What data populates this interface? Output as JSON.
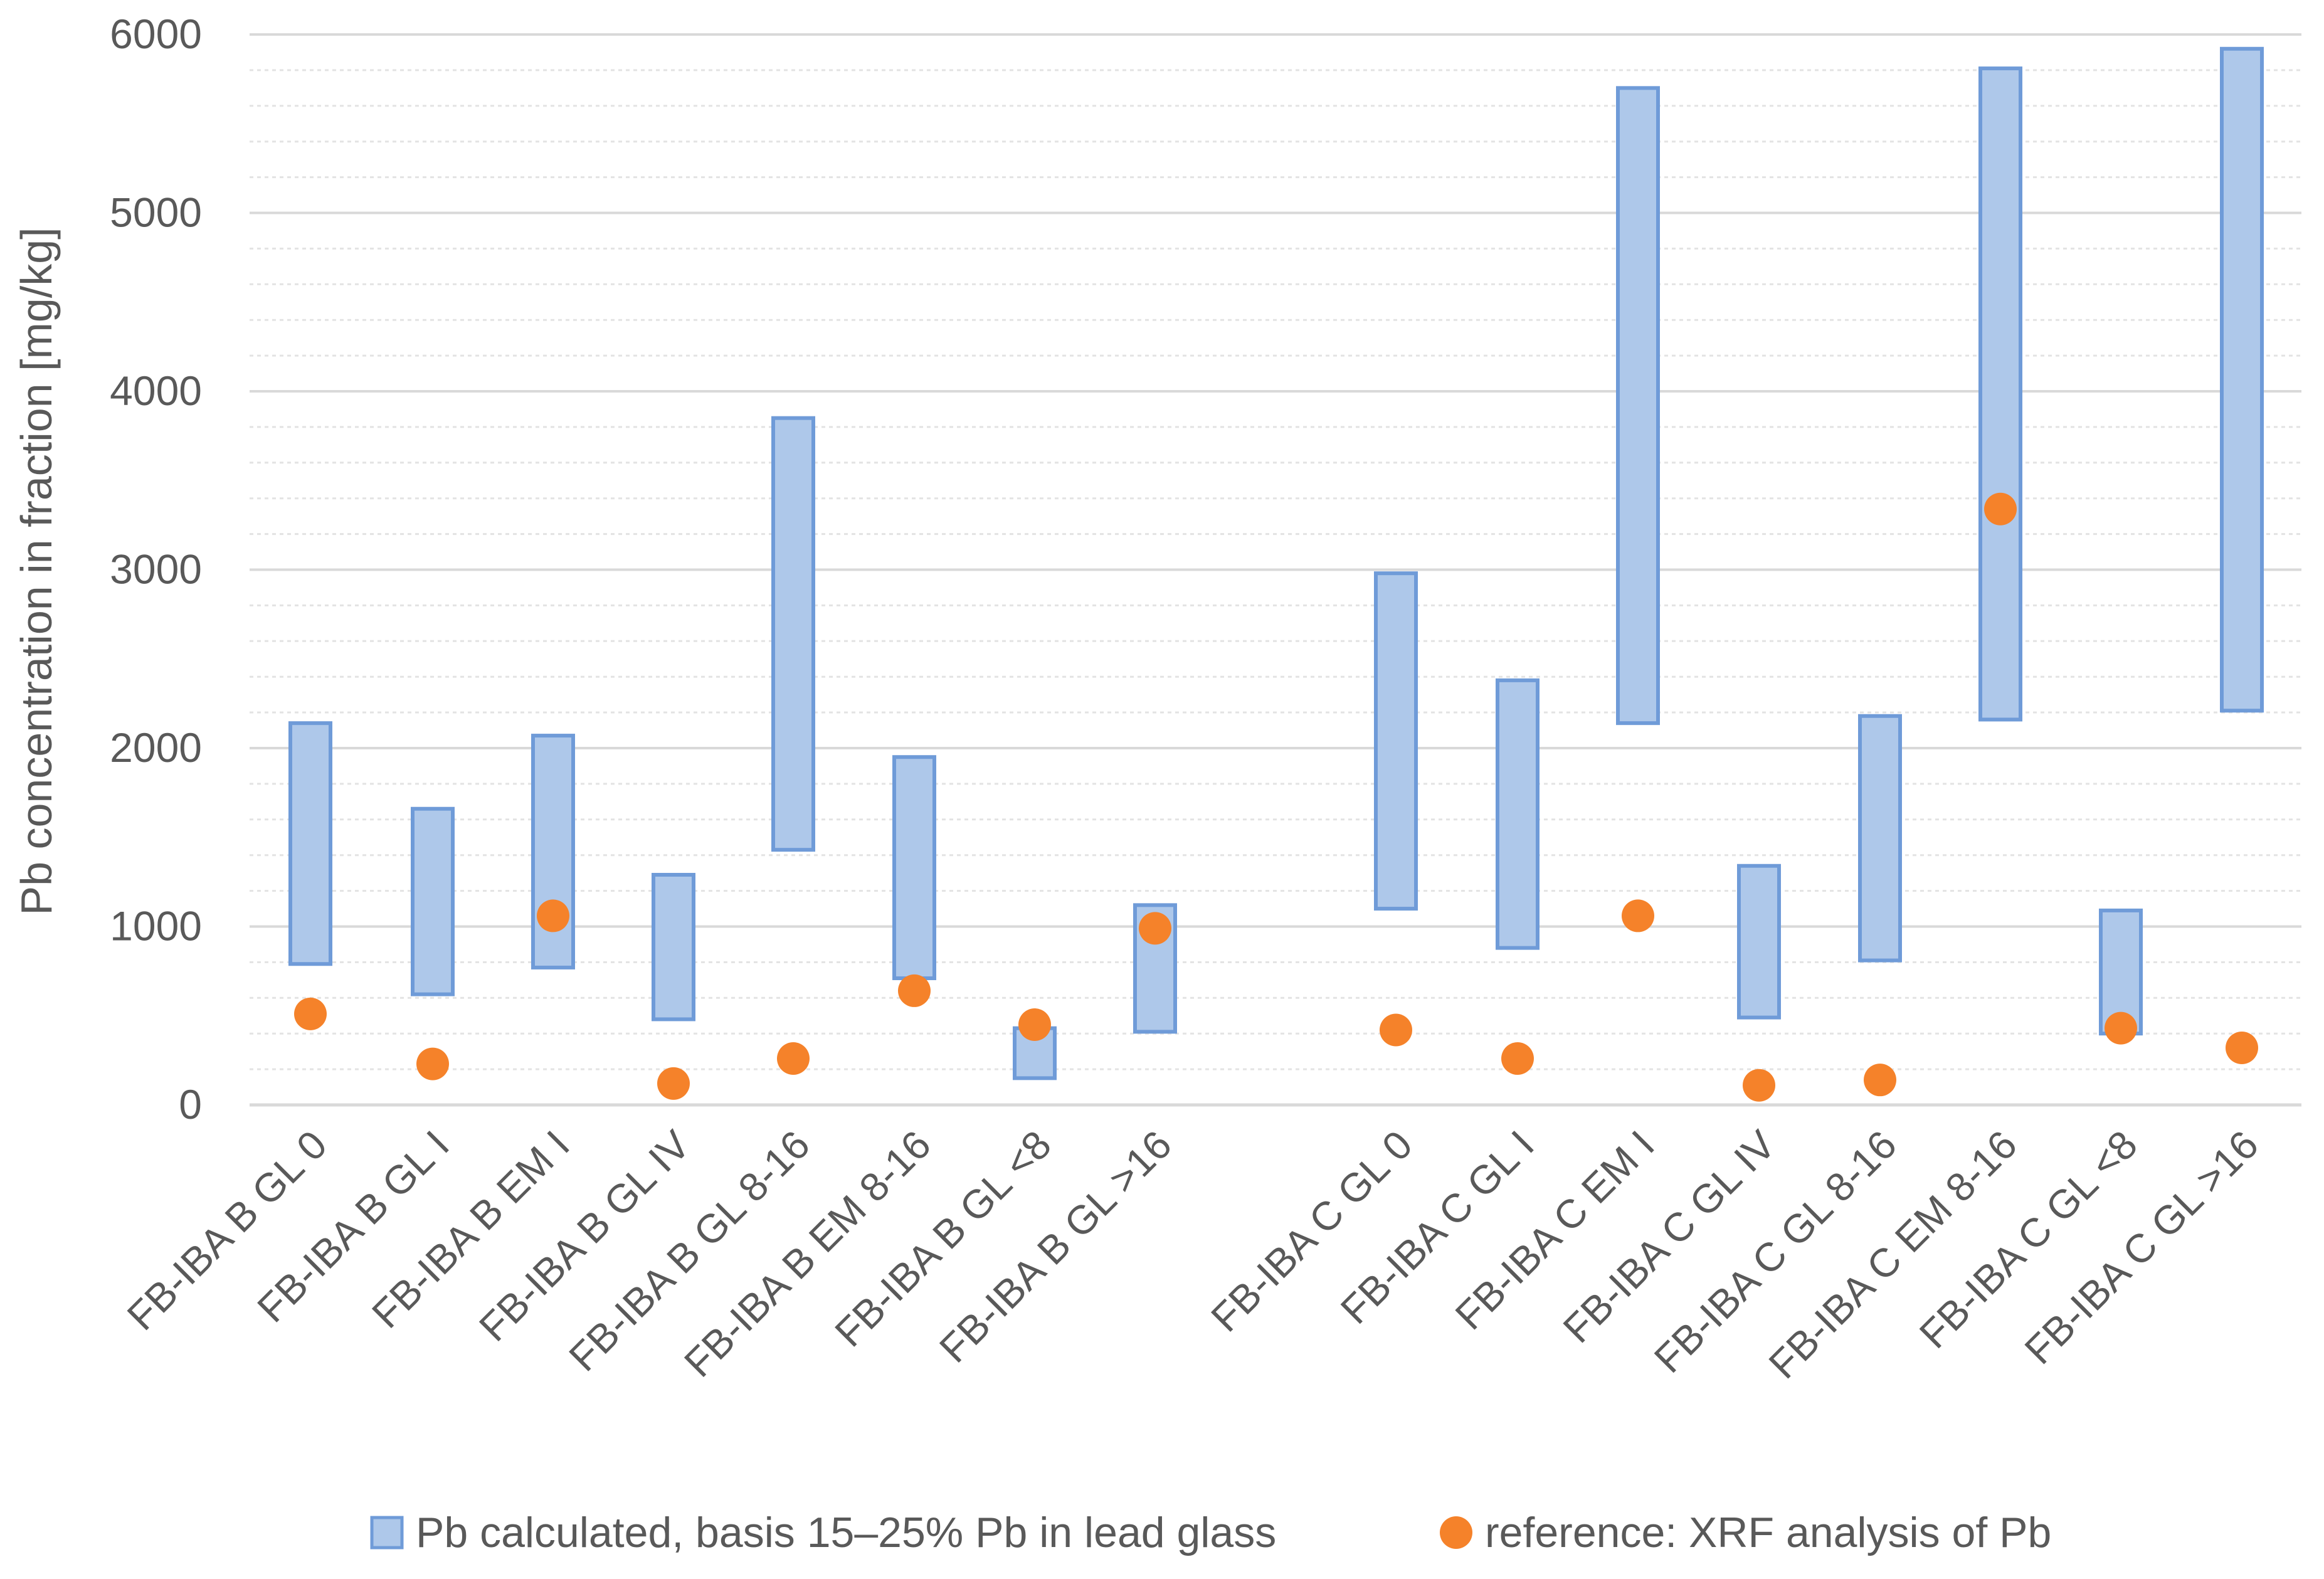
{
  "chart_data": {
    "type": "floating-bar-with-points",
    "title": "",
    "xlabel": "",
    "ylabel": "Pb concentration in fraction [mg/kg]",
    "ylim": [
      0,
      6000
    ],
    "yticks": [
      0,
      1000,
      2000,
      3000,
      4000,
      5000,
      6000
    ],
    "grid": true,
    "legend_position": "bottom",
    "colors": {
      "range": "#aec8ea",
      "range_border": "#6f9bd8",
      "reference": "#f5822a",
      "grid": "#d9d9d9",
      "text": "#595959"
    },
    "categories": [
      "FB-IBA B GL 0",
      "FB-IBA B GL I",
      "FB-IBA B EM I",
      "FB-IBA B GL IV",
      "FB-IBA B GL 8-16",
      "FB-IBA B EM 8-16",
      "FB-IBA B GL <8",
      "FB-IBA B GL >16",
      "FB-IBA C GL 0",
      "FB-IBA C GL I",
      "FB-IBA C EM I",
      "FB-IBA C GL IV",
      "FB-IBA C GL 8-16",
      "FB-IBA C EM 8-16",
      "FB-IBA C GL <8",
      "FB-IBA C GL >16"
    ],
    "groups": [
      {
        "name": "B",
        "indices": [
          0,
          1,
          2,
          3,
          4,
          5,
          6,
          7
        ]
      },
      {
        "name": "C",
        "indices": [
          8,
          9,
          10,
          11,
          12,
          13,
          14,
          15
        ]
      }
    ],
    "series": [
      {
        "name": "Pb calculated, basis 15–25% Pb in lead glass",
        "kind": "range",
        "low": [
          790,
          620,
          770,
          480,
          1430,
          710,
          150,
          410,
          1100,
          880,
          2140,
          490,
          810,
          2160,
          400,
          2210
        ],
        "high": [
          2140,
          1660,
          2070,
          1290,
          3850,
          1950,
          430,
          1120,
          2980,
          2380,
          5700,
          1340,
          2180,
          5810,
          1090,
          5920
        ]
      },
      {
        "name": "reference: XRF analysis of Pb",
        "kind": "point",
        "values": [
          510,
          230,
          1060,
          120,
          260,
          640,
          450,
          990,
          420,
          260,
          1060,
          110,
          140,
          3340,
          430,
          320
        ]
      }
    ]
  }
}
